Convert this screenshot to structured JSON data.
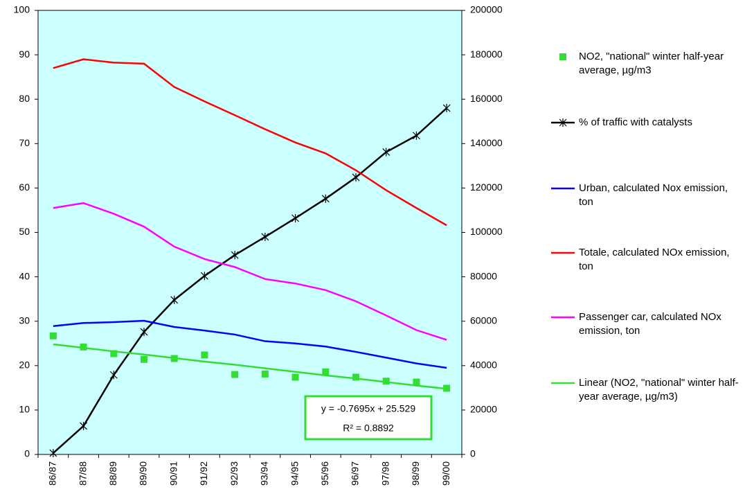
{
  "chart_data": {
    "type": "line",
    "categories": [
      "86/87",
      "87/88",
      "88/89",
      "89/90",
      "90/91",
      "91/92",
      "92/93",
      "93/94",
      "94/95",
      "95/96",
      "96/97",
      "97/98",
      "98/99",
      "99/00"
    ],
    "ylim": [
      0,
      100
    ],
    "yticks": [
      0,
      10,
      20,
      30,
      40,
      50,
      60,
      70,
      80,
      90,
      100
    ],
    "y2lim": [
      0,
      200000
    ],
    "y2ticks": [
      0,
      20000,
      40000,
      60000,
      80000,
      100000,
      120000,
      140000,
      160000,
      180000,
      200000
    ],
    "plot_background": "#ccffff",
    "legend": "right",
    "series": [
      {
        "name": "NO2, \"national\" winter half-year average, µg/m3",
        "color": "#33dd33",
        "marker": "square",
        "line": false,
        "values": [
          26.7,
          24.2,
          22.7,
          21.4,
          21.6,
          22.4,
          18.0,
          18.1,
          17.4,
          18.6,
          17.4,
          16.5,
          16.3,
          14.9
        ]
      },
      {
        "name": "% of traffic with catalysts",
        "color": "#000000",
        "marker": "star",
        "line": true,
        "values": [
          0.3,
          6.4,
          17.9,
          27.6,
          34.8,
          40.2,
          44.9,
          49.0,
          53.2,
          57.6,
          62.4,
          68.1,
          71.8,
          78.0
        ]
      },
      {
        "name": "Urban, calculated Nox emission, ton",
        "color": "#0000ff",
        "axis": "y2",
        "line": true,
        "values": [
          57800,
          59200,
          59600,
          60200,
          57400,
          55800,
          54000,
          51000,
          50000,
          48600,
          46200,
          43600,
          41000,
          39000
        ]
      },
      {
        "name": "Totale, calculated NOx emission, ton",
        "color": "#ff0000",
        "axis": "y2",
        "line": true,
        "values": [
          174000,
          178000,
          176500,
          176000,
          165500,
          159000,
          152800,
          146500,
          140500,
          135600,
          128000,
          119000,
          111000,
          103200
        ]
      },
      {
        "name": "Passenger car, calculated NOx emission, ton",
        "color": "#ff00ff",
        "axis": "y2",
        "line": true,
        "values": [
          111000,
          113200,
          108400,
          102600,
          93600,
          88000,
          84400,
          79000,
          77000,
          74000,
          69000,
          62600,
          56000,
          51600
        ]
      },
      {
        "name": "Linear (NO2, \"national\" winter half-year average, µg/m3)",
        "color": "#33dd33",
        "line": true,
        "values": [
          24.8,
          24.0,
          23.2,
          22.5,
          21.7,
          20.9,
          20.2,
          19.4,
          18.6,
          17.8,
          17.1,
          16.3,
          15.5,
          14.8
        ]
      }
    ],
    "annotations": [
      "y = -0.7695x + 25.529",
      "R² = 0.8892"
    ]
  }
}
